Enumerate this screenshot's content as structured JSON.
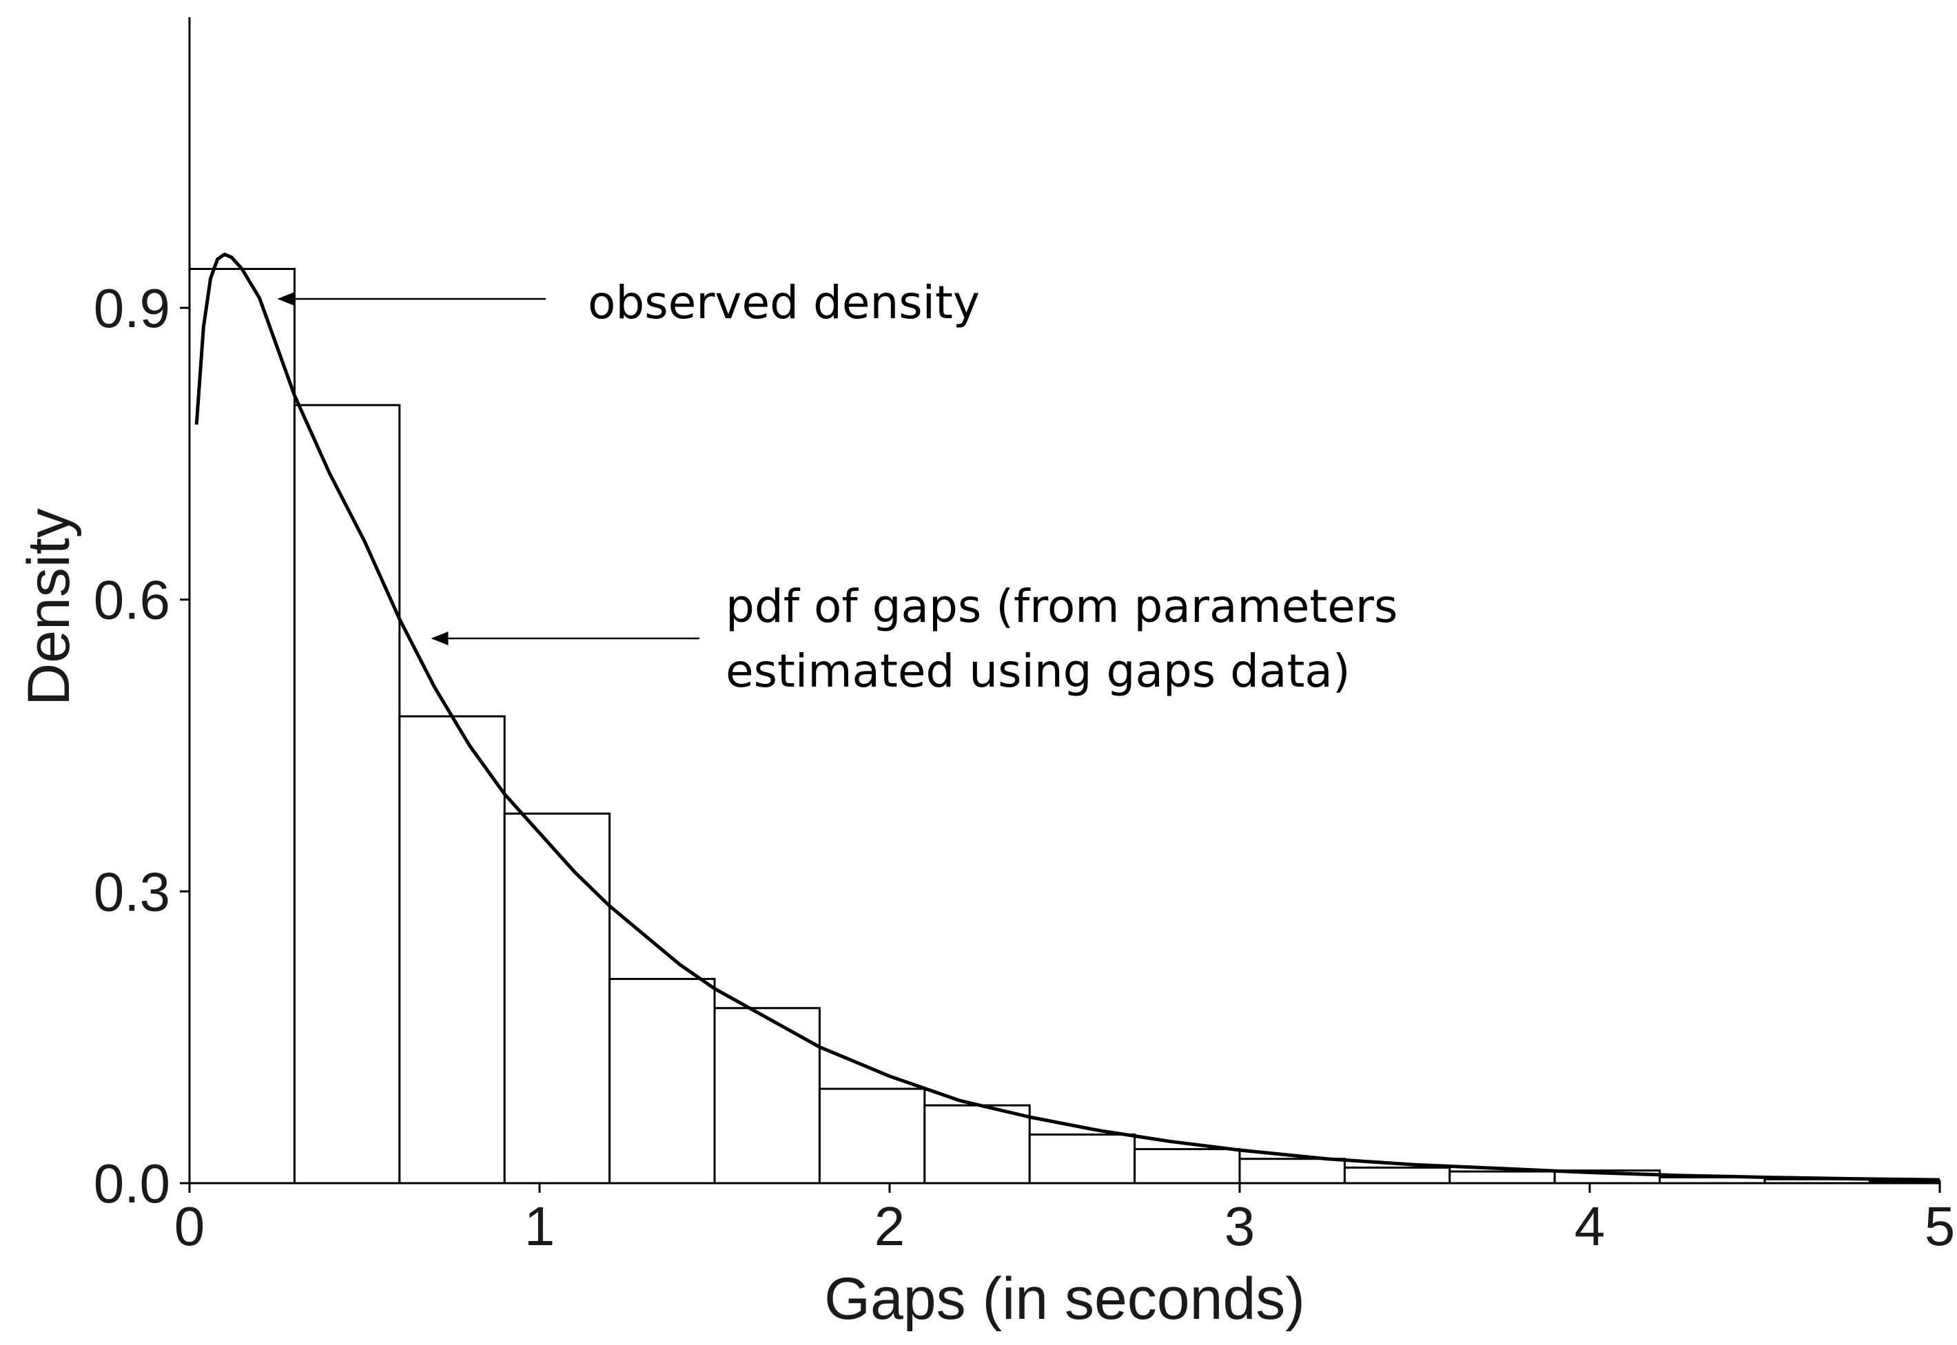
{
  "chart_data": {
    "type": "bar",
    "title": "",
    "xlabel": "Gaps (in seconds)",
    "ylabel": "Density",
    "xlim": [
      0,
      5
    ],
    "ylim": [
      0,
      1.2
    ],
    "x_ticks": [
      "0",
      "1",
      "2",
      "3",
      "4",
      "5"
    ],
    "y_ticks": [
      "0.0",
      "0.3",
      "0.6",
      "0.9"
    ],
    "grid": false,
    "bin_width": 0.3,
    "bins": [
      {
        "x0": 0.0,
        "x1": 0.3,
        "density": 0.94
      },
      {
        "x0": 0.3,
        "x1": 0.6,
        "density": 0.8
      },
      {
        "x0": 0.6,
        "x1": 0.9,
        "density": 0.48
      },
      {
        "x0": 0.9,
        "x1": 1.2,
        "density": 0.38
      },
      {
        "x0": 1.2,
        "x1": 1.5,
        "density": 0.21
      },
      {
        "x0": 1.5,
        "x1": 1.8,
        "density": 0.18
      },
      {
        "x0": 1.8,
        "x1": 2.1,
        "density": 0.097
      },
      {
        "x0": 2.1,
        "x1": 2.4,
        "density": 0.08
      },
      {
        "x0": 2.4,
        "x1": 2.7,
        "density": 0.05
      },
      {
        "x0": 2.7,
        "x1": 3.0,
        "density": 0.035
      },
      {
        "x0": 3.0,
        "x1": 3.3,
        "density": 0.025
      },
      {
        "x0": 3.3,
        "x1": 3.6,
        "density": 0.016
      },
      {
        "x0": 3.6,
        "x1": 3.9,
        "density": 0.012
      },
      {
        "x0": 3.9,
        "x1": 4.2,
        "density": 0.013
      },
      {
        "x0": 4.2,
        "x1": 4.5,
        "density": 0.006
      },
      {
        "x0": 4.5,
        "x1": 4.8,
        "density": 0.004
      },
      {
        "x0": 4.8,
        "x1": 5.0,
        "density": 0.002
      }
    ],
    "pdf_curve": {
      "x": [
        0.02,
        0.04,
        0.06,
        0.08,
        0.1,
        0.12,
        0.15,
        0.2,
        0.25,
        0.3,
        0.35,
        0.4,
        0.5,
        0.6,
        0.7,
        0.8,
        0.9,
        1.0,
        1.1,
        1.2,
        1.3,
        1.4,
        1.5,
        1.6,
        1.8,
        2.0,
        2.2,
        2.4,
        2.6,
        2.8,
        3.0,
        3.25,
        3.5,
        3.75,
        4.0,
        4.25,
        4.5,
        4.75,
        5.0
      ],
      "y": [
        0.78,
        0.88,
        0.93,
        0.95,
        0.955,
        0.952,
        0.94,
        0.91,
        0.86,
        0.81,
        0.77,
        0.73,
        0.66,
        0.58,
        0.51,
        0.45,
        0.4,
        0.36,
        0.32,
        0.285,
        0.255,
        0.225,
        0.2,
        0.18,
        0.14,
        0.11,
        0.085,
        0.068,
        0.054,
        0.043,
        0.034,
        0.025,
        0.019,
        0.015,
        0.011,
        0.008,
        0.006,
        0.0045,
        0.0035
      ]
    },
    "annotations": [
      {
        "lines": [
          "observed density"
        ],
        "arrow_to": {
          "x": 0.26,
          "y": 0.91
        },
        "text_at": {
          "x": 1.15,
          "y": 0.915
        }
      },
      {
        "lines": [
          "pdf of gaps (from parameters",
          "estimated using gaps data)"
        ],
        "arrow_to": {
          "x": 0.7,
          "y": 0.565
        },
        "text_at": {
          "x": 1.55,
          "y": 0.59
        }
      }
    ]
  }
}
